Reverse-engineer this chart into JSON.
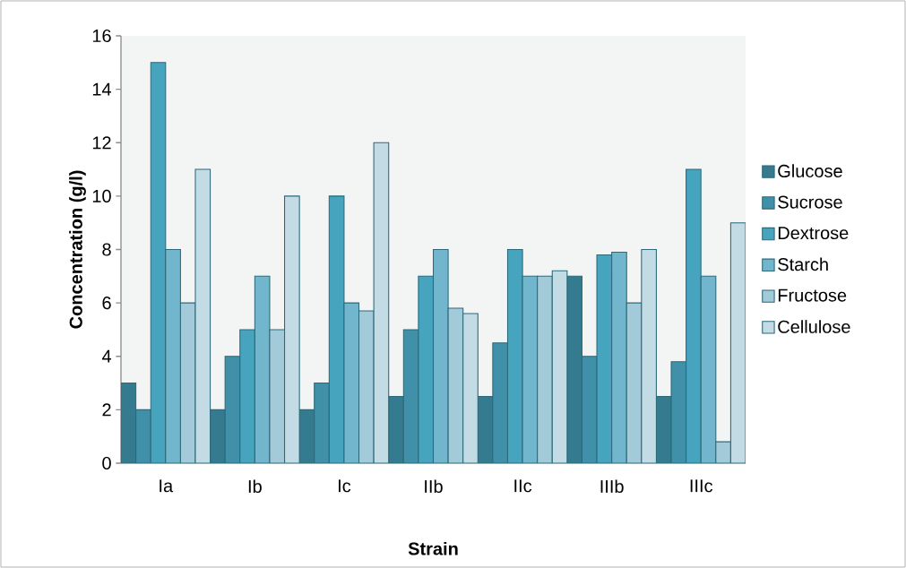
{
  "chart_data": {
    "type": "bar",
    "xlabel": "Strain",
    "ylabel": "Concentration (g/l)",
    "categories": [
      "Ia",
      "Ib",
      "Ic",
      "IIb",
      "IIc",
      "IIIb",
      "IIIc"
    ],
    "series": [
      {
        "name": "Glucose",
        "color": "#347b8f",
        "values": [
          3,
          2,
          2,
          2.5,
          2.5,
          7,
          2.5
        ]
      },
      {
        "name": "Sucrose",
        "color": "#3f90a8",
        "values": [
          2,
          4,
          3,
          5,
          4.5,
          4,
          3.8
        ]
      },
      {
        "name": "Dextrose",
        "color": "#46a4bf",
        "values": [
          15,
          5,
          10,
          7,
          8,
          7.8,
          11
        ]
      },
      {
        "name": "Starch",
        "color": "#72b6cd",
        "values": [
          8,
          7,
          6,
          8,
          7,
          7.9,
          7
        ]
      },
      {
        "name": "Fructose",
        "color": "#a2cad9",
        "values": [
          6,
          5,
          5.7,
          5.8,
          7,
          6,
          0.8
        ]
      },
      {
        "name": "Cellulose",
        "color": "#c2dbe4",
        "values": [
          11,
          10,
          12,
          5.6,
          7.2,
          8,
          9
        ]
      }
    ],
    "ylim": [
      0,
      16
    ],
    "yticks": [
      0,
      2,
      4,
      6,
      8,
      10,
      12,
      14,
      16
    ],
    "legend": "right"
  }
}
